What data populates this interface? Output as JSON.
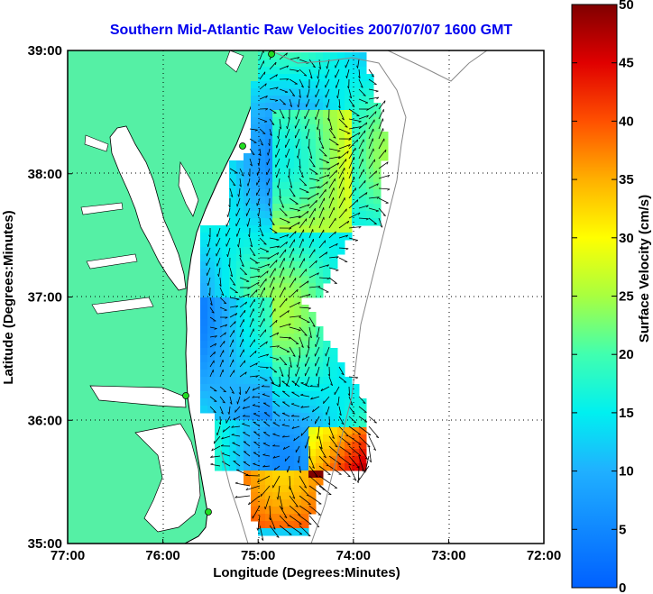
{
  "title": "Southern Mid-Atlantic Raw Velocities 2007/07/07 1600 GMT",
  "title_color": "#0000ee",
  "map": {
    "xlabel": "Longitude (Degrees:Minutes)",
    "ylabel": "Latitude (Degrees:Minutes)",
    "lon_ticks": [
      "77:00",
      "76:00",
      "75:00",
      "74:00",
      "73:00",
      "72:00"
    ],
    "lat_ticks": [
      "39:00",
      "38:00",
      "37:00",
      "36:00",
      "35:00"
    ],
    "lon_range": [
      -77,
      -72
    ],
    "lat_range": [
      35,
      39
    ],
    "grid": "dotted",
    "land_color": "#55f0a5",
    "bathymetry_color": "#888888",
    "radar_site_color": "#22dd22"
  },
  "colorbar": {
    "label": "Surface Velocity (cm/s)",
    "ticks": [
      "0",
      "5",
      "10",
      "15",
      "20",
      "25",
      "30",
      "35",
      "40",
      "45",
      "50"
    ],
    "range": [
      0,
      50
    ],
    "colormap": "jet"
  }
}
